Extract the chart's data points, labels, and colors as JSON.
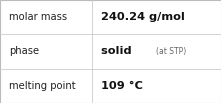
{
  "rows": [
    {
      "label": "molar mass",
      "value_main": "240.24 g/mol",
      "value_sub": ""
    },
    {
      "label": "phase",
      "value_main": "solid",
      "value_sub": "(at STP)"
    },
    {
      "label": "melting point",
      "value_main": "109 °C",
      "value_sub": ""
    }
  ],
  "col_split": 0.415,
  "background_color": "#ffffff",
  "border_color": "#bbbbbb",
  "label_color": "#222222",
  "value_color": "#111111",
  "sub_color": "#666666",
  "label_fontsize": 7.2,
  "value_fontsize": 8.2,
  "sub_fontsize": 5.5,
  "row_line_color": "#cccccc",
  "fig_width": 2.21,
  "fig_height": 1.03,
  "dpi": 100
}
